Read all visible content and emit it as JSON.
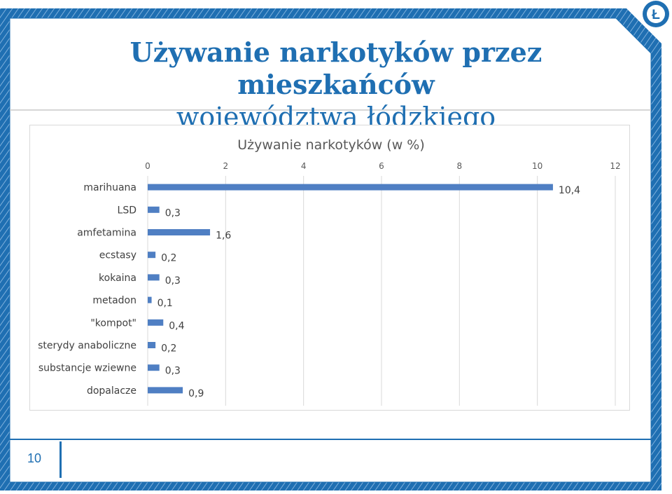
{
  "slide": {
    "title_part1": "Używanie narkotyków przez mieszkańców",
    "title_part2": "województwa łódzkiego",
    "page_number": "10",
    "logo_letter": "Ł"
  },
  "colors": {
    "accent": "#1f6fb2",
    "bar": "#4f7fc3",
    "text": "#404040",
    "grid": "#d9d9d9"
  },
  "chart_data": {
    "type": "bar",
    "orientation": "horizontal",
    "title": "Używanie narkotyków (w %)",
    "categories": [
      "marihuana",
      "LSD",
      "amfetamina",
      "ecstasy",
      "kokaina",
      "metadon",
      "\"kompot\"",
      "sterydy anaboliczne",
      "substancje wziewne",
      "dopalacze"
    ],
    "values": [
      10.4,
      0.3,
      1.6,
      0.2,
      0.3,
      0.1,
      0.4,
      0.2,
      0.3,
      0.9
    ],
    "data_labels": [
      "10,4",
      "0,3",
      "1,6",
      "0,2",
      "0,3",
      "0,1",
      "0,4",
      "0,2",
      "0,3",
      "0,9"
    ],
    "xlim": [
      0,
      12
    ],
    "xticks": [
      0,
      2,
      4,
      6,
      8,
      10,
      12
    ],
    "xtick_labels": [
      "0",
      "2",
      "4",
      "6",
      "8",
      "10",
      "12"
    ],
    "axis_position": "top",
    "grid": true,
    "legend": "none"
  }
}
